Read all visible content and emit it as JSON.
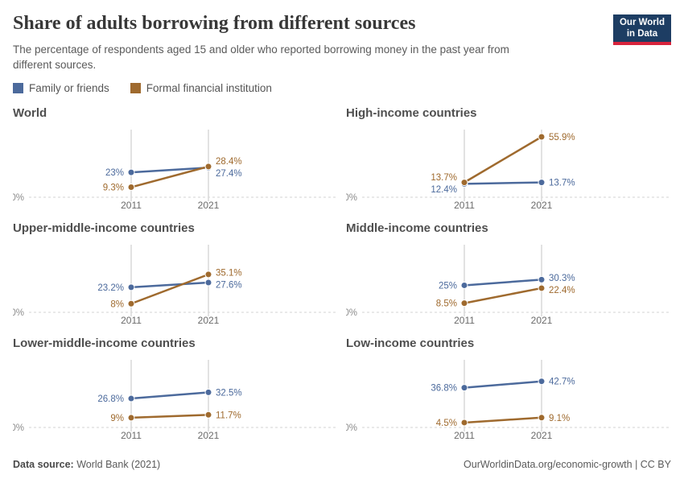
{
  "header": {
    "title": "Share of adults borrowing from different sources",
    "subtitle": "The percentage of respondents aged 15 and older who reported borrowing money in the past year from different sources.",
    "logo": {
      "line1": "Our World",
      "line2": "in Data",
      "bg_color": "#1d3d63",
      "bar_color": "#d8233c"
    }
  },
  "legend": {
    "items": [
      {
        "label": "Family or friends",
        "color": "#4C6A9C"
      },
      {
        "label": "Formal financial institution",
        "color": "#9F6A2E"
      }
    ]
  },
  "chart_data": {
    "type": "line",
    "x": [
      2011,
      2021
    ],
    "x_tick_labels": [
      "2011",
      "2021"
    ],
    "ylim": [
      0,
      62.6
    ],
    "y_zero_label": "0%",
    "grid": "vertical gridlines at each year, dashed horizontal line at 0%",
    "legend_position": "top-left above panels",
    "series_colors": {
      "Family or friends": "#4C6A9C",
      "Formal financial institution": "#9F6A2E"
    },
    "panels": [
      {
        "title": "World",
        "series": [
          {
            "name": "Family or friends",
            "values": [
              23,
              27.4
            ],
            "labels": [
              "23%",
              "27.4%"
            ]
          },
          {
            "name": "Formal financial institution",
            "values": [
              9.3,
              28.4
            ],
            "labels": [
              "9.3%",
              "28.4%"
            ]
          }
        ]
      },
      {
        "title": "High-income countries",
        "series": [
          {
            "name": "Family or friends",
            "values": [
              12.4,
              13.7
            ],
            "labels": [
              "12.4%",
              "13.7%"
            ]
          },
          {
            "name": "Formal financial institution",
            "values": [
              13.7,
              55.9
            ],
            "labels": [
              "13.7%",
              "55.9%"
            ]
          }
        ]
      },
      {
        "title": "Upper-middle-income countries",
        "series": [
          {
            "name": "Family or friends",
            "values": [
              23.2,
              27.6
            ],
            "labels": [
              "23.2%",
              "27.6%"
            ]
          },
          {
            "name": "Formal financial institution",
            "values": [
              8,
              35.1
            ],
            "labels": [
              "8%",
              "35.1%"
            ]
          }
        ]
      },
      {
        "title": "Middle-income countries",
        "series": [
          {
            "name": "Family or friends",
            "values": [
              25,
              30.3
            ],
            "labels": [
              "25%",
              "30.3%"
            ]
          },
          {
            "name": "Formal financial institution",
            "values": [
              8.5,
              22.4
            ],
            "labels": [
              "8.5%",
              "22.4%"
            ]
          }
        ]
      },
      {
        "title": "Lower-middle-income countries",
        "series": [
          {
            "name": "Family or friends",
            "values": [
              26.8,
              32.5
            ],
            "labels": [
              "26.8%",
              "32.5%"
            ]
          },
          {
            "name": "Formal financial institution",
            "values": [
              9,
              11.7
            ],
            "labels": [
              "9%",
              "11.7%"
            ]
          }
        ]
      },
      {
        "title": "Low-income countries",
        "series": [
          {
            "name": "Family or friends",
            "values": [
              36.8,
              42.7
            ],
            "labels": [
              "36.8%",
              "42.7%"
            ]
          },
          {
            "name": "Formal financial institution",
            "values": [
              4.5,
              9.1
            ],
            "labels": [
              "4.5%",
              "9.1%"
            ]
          }
        ]
      }
    ],
    "style": {
      "gridline_color": "#c4c4c4",
      "zero_line_color": "#dcdcdc",
      "tick_label_color": "#6b6b6b",
      "zero_label_color": "#8c8c8c"
    }
  },
  "footer": {
    "datasource_label": "Data source:",
    "datasource_value": " World Bank (2021)",
    "right": "OurWorldinData.org/economic-growth | CC BY"
  }
}
